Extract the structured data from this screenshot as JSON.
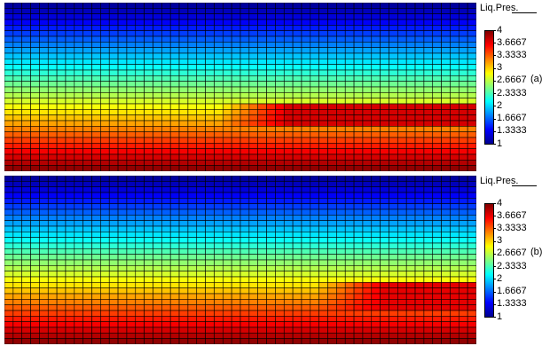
{
  "chart_data": [
    {
      "type": "heatmap",
      "panel_label": "(a)",
      "legend_title": "Liq.Pres.",
      "colorbar": {
        "min": 1,
        "max": 4,
        "ticks": [
          "4",
          "3.6667",
          "3.3333",
          "3",
          "2.6667",
          "2.3333",
          "2",
          "1.6667",
          "1.3333",
          "1"
        ],
        "colormap": [
          "#00008f",
          "#0000ff",
          "#0080ff",
          "#00ffff",
          "#80ff80",
          "#ffff00",
          "#ff8000",
          "#ff0000",
          "#800000"
        ]
      },
      "grid": {
        "cols": 54,
        "rows": 30,
        "mesh_lines": true
      },
      "field": {
        "top_value": 1.0,
        "bottom_value": 4.0,
        "plume_right_value": 3.75,
        "plume_start_col": 25,
        "plume_top_row": 18,
        "plume_bottom_row": 21
      }
    },
    {
      "type": "heatmap",
      "panel_label": "(b)",
      "legend_title": "Liq.Pres.",
      "colorbar": {
        "min": 1,
        "max": 4,
        "ticks": [
          "4",
          "3.6667",
          "3.3333",
          "3",
          "2.6667",
          "2.3333",
          "2",
          "1.6667",
          "1.3333",
          "1"
        ],
        "colormap": [
          "#00008f",
          "#0000ff",
          "#0080ff",
          "#00ffff",
          "#80ff80",
          "#ffff00",
          "#ff8000",
          "#ff0000",
          "#800000"
        ]
      },
      "grid": {
        "cols": 54,
        "rows": 30,
        "mesh_lines": true
      },
      "field": {
        "top_value": 1.0,
        "bottom_value": 4.0,
        "plume_right_value": 3.7,
        "plume_start_col": 36,
        "plume_top_row": 19,
        "plume_bottom_row": 23
      }
    }
  ]
}
